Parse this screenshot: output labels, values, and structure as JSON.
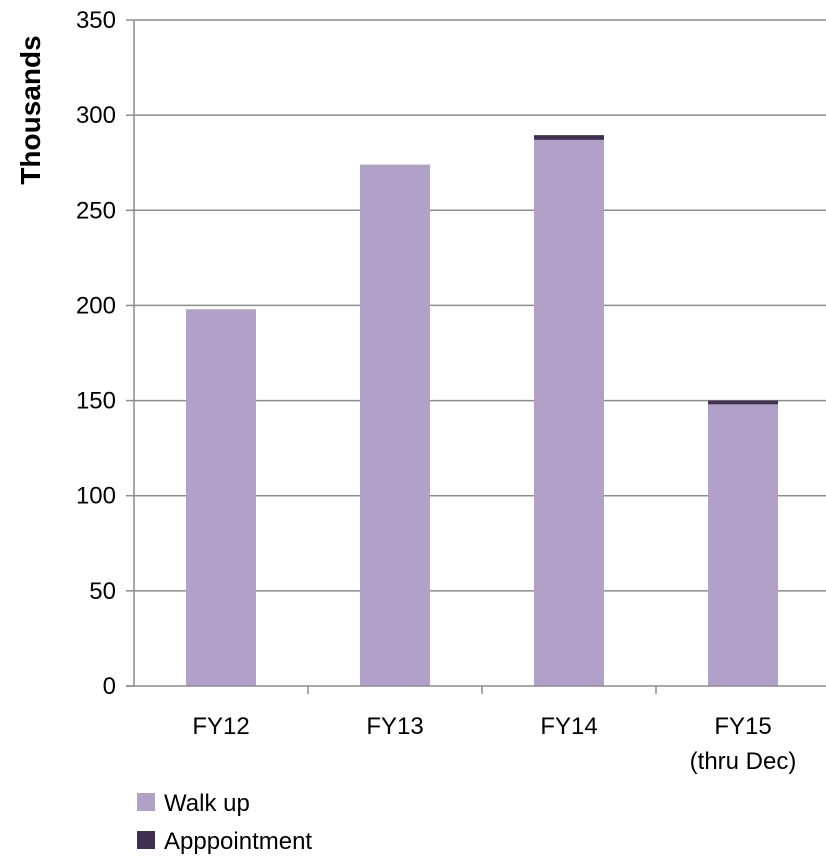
{
  "chart_data": {
    "type": "bar",
    "stacked": true,
    "categories": [
      "FY12",
      "FY13",
      "FY14",
      "FY15 (thru Dec)"
    ],
    "category_labels": [
      [
        "FY12"
      ],
      [
        "FY13"
      ],
      [
        "FY14"
      ],
      [
        "FY15",
        "(thru Dec)"
      ]
    ],
    "series": [
      {
        "name": "Walk up",
        "values": [
          198,
          274,
          287,
          148
        ],
        "color": "#b1a0c7"
      },
      {
        "name": "Apppointment",
        "values": [
          0,
          0,
          2.5,
          2
        ],
        "color": "#403152"
      }
    ],
    "xlabel": "",
    "ylabel": "Thousands",
    "ylim": [
      0,
      350
    ],
    "yticks": [
      0,
      50,
      100,
      150,
      200,
      250,
      300,
      350
    ],
    "grid": true,
    "legend_position": "bottom-left"
  }
}
